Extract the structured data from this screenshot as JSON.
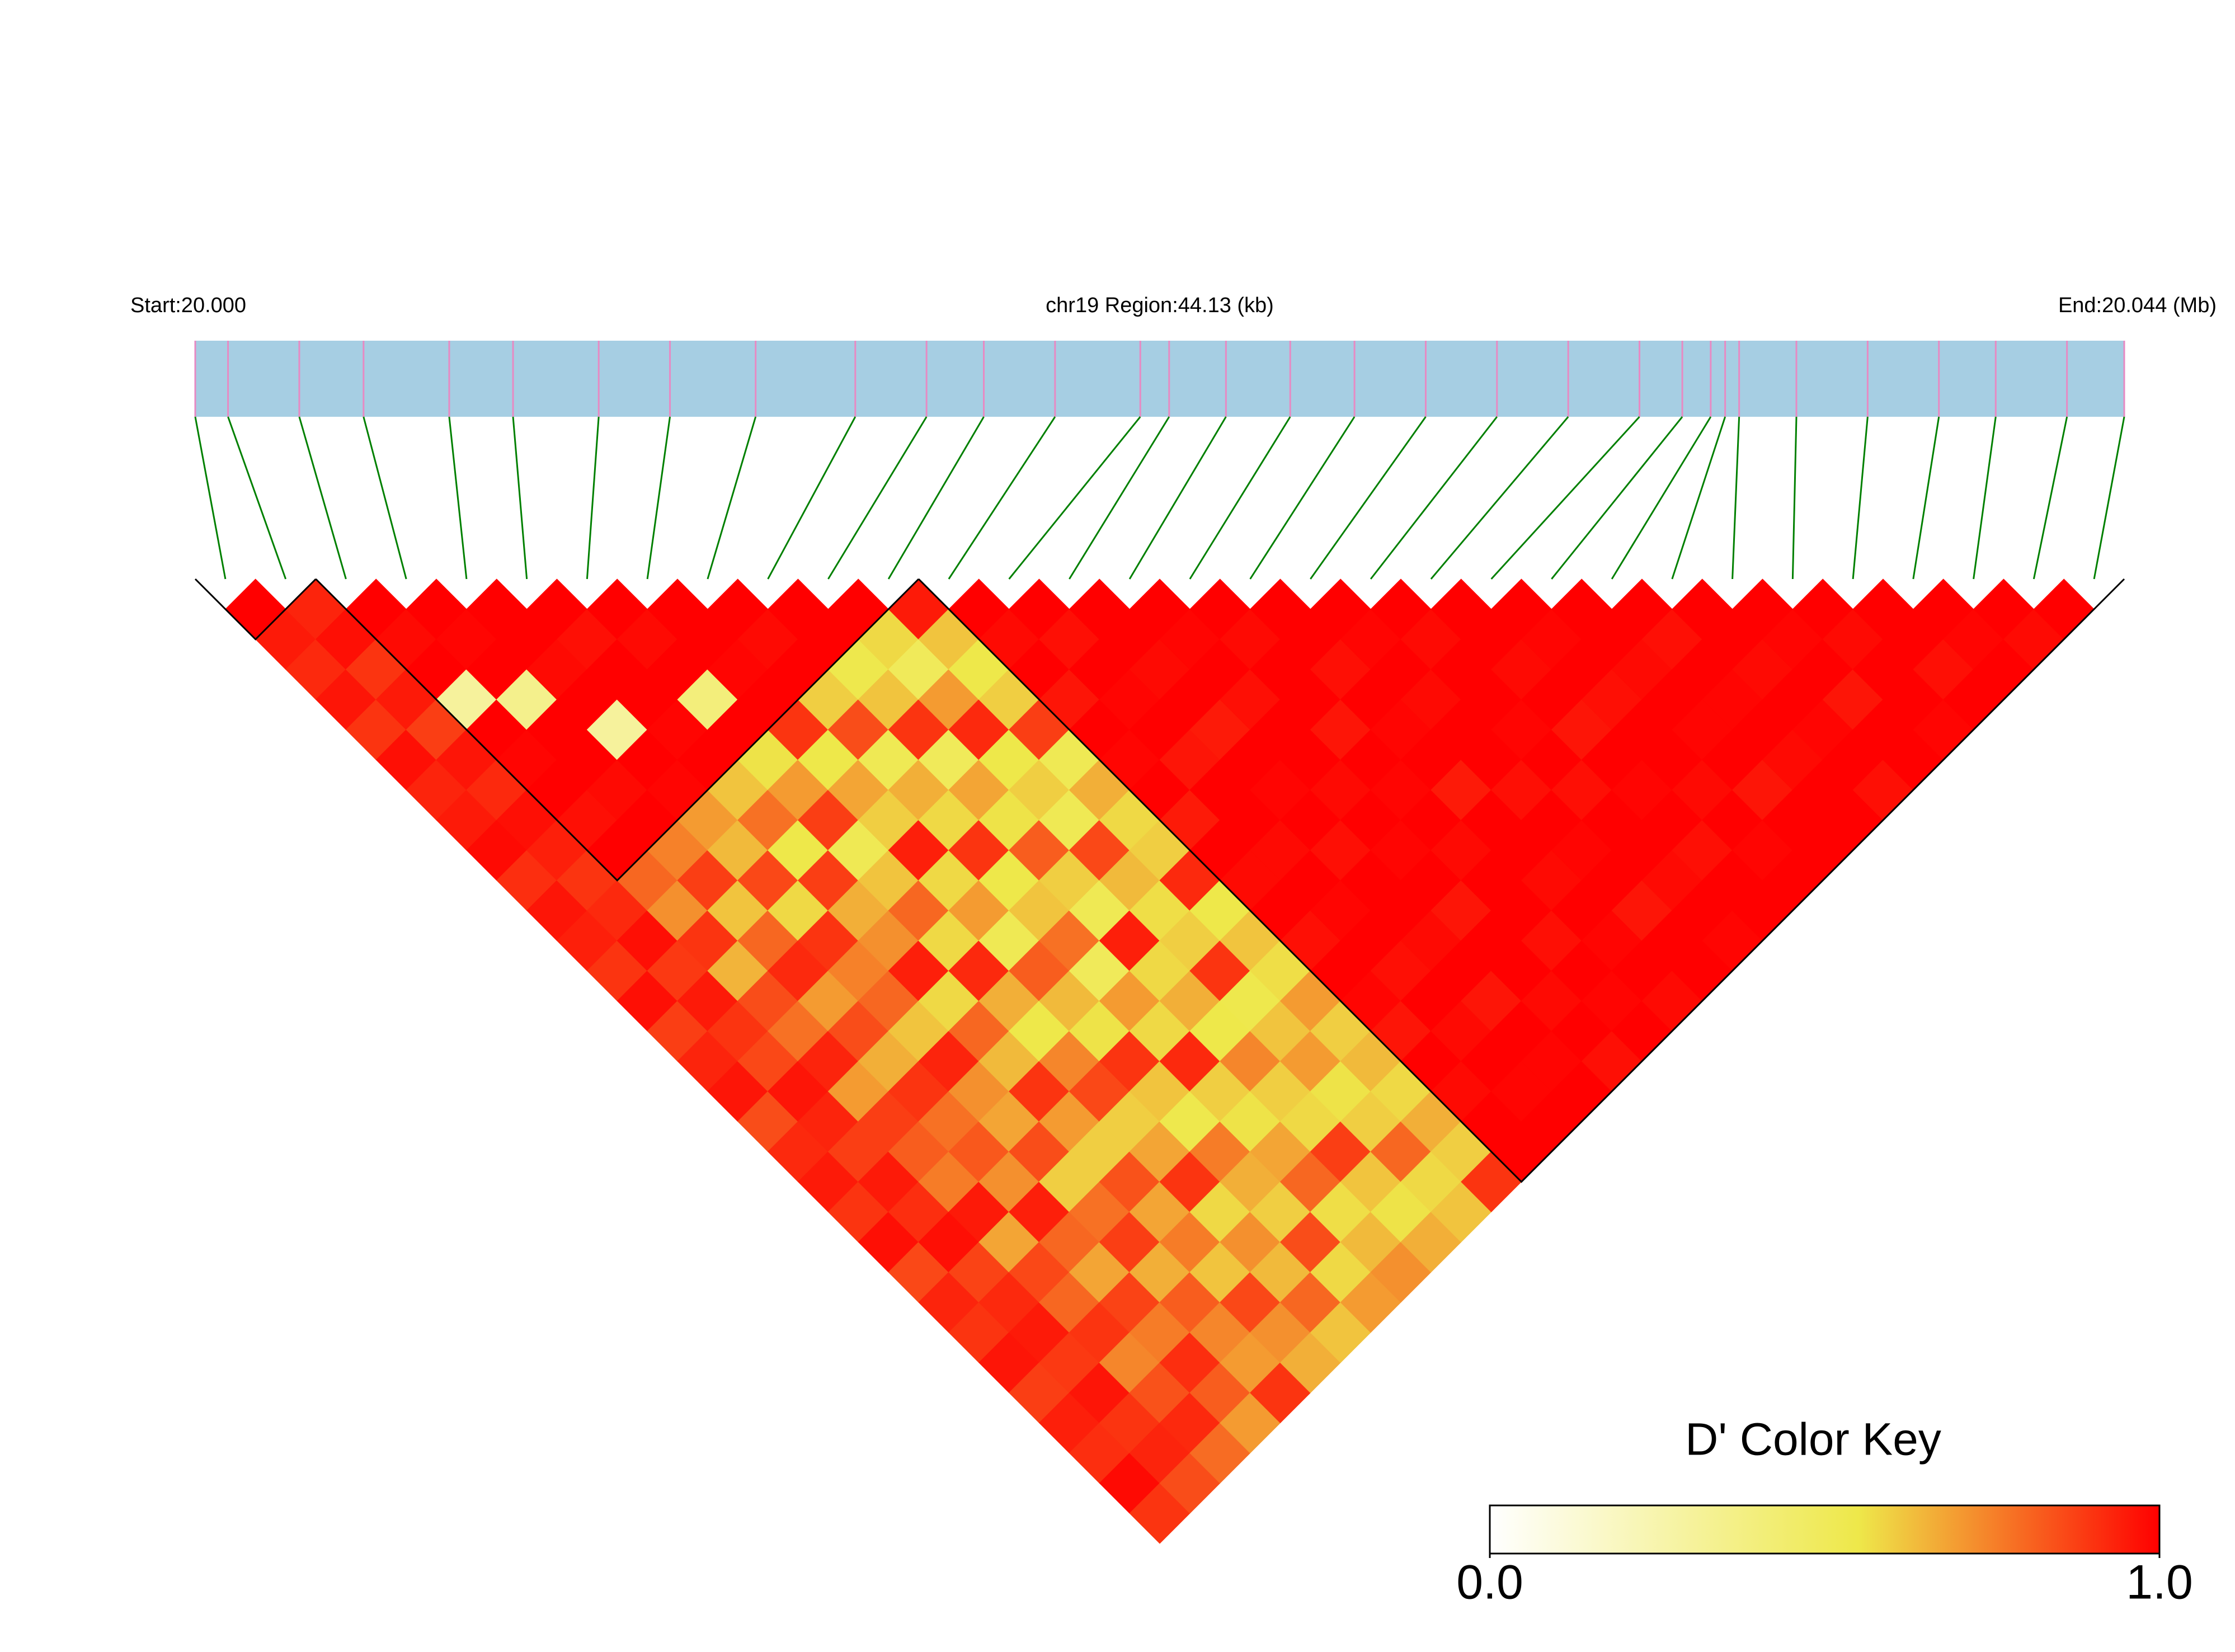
{
  "chart_data": {
    "type": "ld-heatmap",
    "start_label": "Start:20.000",
    "region_label": "chr19 Region:44.13 (kb)",
    "end_label": "End:20.044 (Mb)",
    "xlim": [
      20.0,
      20.04413
    ],
    "positions": [
      20.0,
      20.00075,
      20.00238,
      20.00385,
      20.00581,
      20.00727,
      20.00923,
      20.01086,
      20.01282,
      20.0151,
      20.01673,
      20.01804,
      20.01967,
      20.02162,
      20.02228,
      20.02358,
      20.02505,
      20.02652,
      20.02815,
      20.02978,
      20.03141,
      20.03304,
      20.03402,
      20.03467,
      20.035,
      20.03532,
      20.03663,
      20.03826,
      20.03989,
      20.04119,
      20.04282,
      20.04413
    ],
    "bar_color": "#a6cee3",
    "snp_tick_color": "#e78ac3",
    "link_color": "#008000",
    "colorscale": [
      [
        0,
        "#ffffff"
      ],
      [
        0.55,
        "#eee84a"
      ],
      [
        1,
        "#ff0000"
      ]
    ],
    "blocks": [
      [
        0,
        1
      ],
      [
        2,
        11
      ],
      [
        12,
        31
      ]
    ],
    "dprime": [
      [
        1,
        0.95,
        0.92,
        0.96,
        0.9,
        0.97,
        0.93,
        0.95,
        0.98,
        0.91,
        0.96,
        0.94,
        0.9,
        0.97,
        0.88,
        0.93,
        0.96,
        0.85,
        0.92,
        0.95,
        0.9,
        0.97,
        0.86,
        0.93,
        0.9,
        0.96,
        0.88,
        0.94,
        0.91,
        0.98,
        0.9
      ],
      [
        0.93,
        0.97,
        0.9,
        0.95,
        0.88,
        0.96,
        0.92,
        0.97,
        0.94,
        0.9,
        0.92,
        0.97,
        0.89,
        0.95,
        0.9,
        0.86,
        0.96,
        0.93,
        0.88,
        0.95,
        0.91,
        0.97,
        0.87,
        0.92,
        0.95,
        0.89,
        0.96,
        0.9,
        0.93,
        0.85
      ],
      [
        1,
        0.98,
        1,
        0.3,
        1,
        0.99,
        1,
        0.97,
        1,
        0.8,
        0.72,
        0.9,
        0.65,
        0.85,
        0.78,
        0.93,
        0.7,
        0.88,
        0.82,
        0.76,
        0.95,
        0.68,
        0.86,
        0.8,
        0.9,
        0.74,
        0.84,
        0.92,
        0.79
      ],
      [
        1,
        0.99,
        1,
        0.35,
        1,
        1,
        0.98,
        1,
        0.75,
        0.88,
        0.62,
        0.8,
        0.92,
        0.7,
        0.85,
        0.66,
        0.9,
        0.78,
        0.83,
        0.72,
        0.94,
        0.8,
        0.68,
        0.87,
        0.76,
        0.91,
        0.82,
        0.7
      ],
      [
        1,
        1,
        0.98,
        1,
        0.3,
        1,
        0.99,
        0.7,
        0.64,
        0.86,
        0.58,
        0.9,
        0.75,
        0.8,
        0.62,
        0.93,
        0.72,
        0.68,
        0.85,
        0.6,
        0.78,
        0.88,
        0.66,
        0.82,
        0.74,
        0.7,
        0.9
      ],
      [
        1,
        0.97,
        1,
        1,
        0.99,
        1,
        0.62,
        0.78,
        0.55,
        0.88,
        0.66,
        0.72,
        0.94,
        0.58,
        0.8,
        0.64,
        0.9,
        0.7,
        0.6,
        0.84,
        0.68,
        0.76,
        0.62,
        0.86,
        0.72,
        0.66
      ],
      [
        1,
        0.98,
        1,
        0.4,
        1,
        0.56,
        0.7,
        0.88,
        0.52,
        0.62,
        0.8,
        0.58,
        0.92,
        0.66,
        0.55,
        0.74,
        0.86,
        0.6,
        0.68,
        0.9,
        0.58,
        0.72,
        0.64,
        0.8,
        0.62
      ],
      [
        1,
        1,
        0.99,
        1,
        0.9,
        0.55,
        0.68,
        0.6,
        0.94,
        0.58,
        0.7,
        0.52,
        0.82,
        0.64,
        0.56,
        0.9,
        0.62,
        0.54,
        0.76,
        0.66,
        0.6,
        0.85,
        0.58,
        0.7
      ],
      [
        1,
        0.98,
        1,
        0.6,
        0.85,
        0.52,
        0.66,
        0.58,
        0.9,
        0.55,
        0.62,
        0.78,
        0.5,
        0.7,
        0.58,
        0.92,
        0.6,
        0.56,
        0.68,
        0.8,
        0.57,
        0.64,
        0.72
      ],
      [
        1,
        1,
        0.54,
        0.62,
        0.9,
        0.5,
        0.68,
        0.56,
        0.82,
        0.6,
        0.52,
        0.94,
        0.58,
        0.66,
        0.55,
        0.74,
        0.6,
        0.58,
        0.88,
        0.62,
        0.56,
        0.66
      ],
      [
        1,
        0.58,
        0.5,
        0.7,
        0.92,
        0.55,
        0.6,
        0.52,
        0.86,
        0.64,
        0.57,
        0.6,
        0.9,
        0.54,
        0.62,
        0.7,
        0.56,
        0.6,
        0.8,
        0.58,
        0.62
      ],
      [
        0.95,
        0.62,
        0.55,
        0.6,
        0.88,
        0.52,
        0.66,
        0.58,
        0.6,
        0.92,
        0.55,
        0.62,
        0.57,
        0.7,
        0.6,
        0.64,
        0.58,
        0.66,
        0.6,
        0.9
      ],
      [
        1,
        0.98,
        1,
        0.96,
        1,
        0.99,
        1,
        0.95,
        1,
        0.98,
        1,
        0.97,
        1,
        0.99,
        0.96,
        1,
        0.98,
        1,
        1
      ],
      [
        1,
        0.97,
        1,
        0.99,
        1,
        0.96,
        1,
        1,
        0.98,
        1,
        0.99,
        1,
        0.97,
        1,
        0.98,
        1,
        0.99,
        1
      ],
      [
        1,
        1,
        0.98,
        1,
        0.95,
        1,
        0.99,
        1,
        0.97,
        1,
        1,
        0.98,
        1,
        0.96,
        1,
        0.99,
        1
      ],
      [
        1,
        0.99,
        1,
        0.97,
        1,
        1,
        0.98,
        1,
        0.99,
        1,
        0.96,
        1,
        1,
        0.98,
        1,
        0.97
      ],
      [
        1,
        0.98,
        1,
        1,
        0.96,
        1,
        0.99,
        1,
        0.98,
        1,
        1,
        0.97,
        1,
        0.99,
        1
      ],
      [
        1,
        1,
        0.97,
        1,
        0.99,
        1,
        0.95,
        1,
        1,
        0.98,
        1,
        0.99,
        1,
        0.98
      ],
      [
        1,
        0.99,
        1,
        0.98,
        1,
        1,
        0.97,
        1,
        0.99,
        1,
        0.96,
        1,
        1
      ],
      [
        1,
        0.98,
        1,
        1,
        0.99,
        1,
        0.97,
        1,
        1,
        0.98,
        1,
        0.99
      ],
      [
        1,
        1,
        0.98,
        1,
        0.96,
        1,
        0.99,
        1,
        0.97,
        1,
        1
      ],
      [
        1,
        0.99,
        1,
        0.97,
        1,
        1,
        0.98,
        1,
        0.99,
        1
      ],
      [
        1,
        1,
        0.98,
        1,
        0.99,
        1,
        0.96,
        1,
        1
      ],
      [
        1,
        0.97,
        1,
        0.99,
        1,
        0.98,
        1,
        1
      ],
      [
        1,
        1,
        0.98,
        1,
        0.99,
        1,
        0.97
      ],
      [
        1,
        0.99,
        1,
        0.96,
        1,
        1
      ],
      [
        1,
        0.98,
        1,
        1,
        0.99
      ],
      [
        1,
        1,
        0.97,
        1
      ],
      [
        1,
        0.99,
        1
      ],
      [
        1,
        0.98
      ],
      [
        1
      ]
    ],
    "key_title": "D' Color Key",
    "key_ticks": [
      {
        "value": 0,
        "label": "0.0"
      },
      {
        "value": 1,
        "label": "1.0"
      }
    ]
  }
}
